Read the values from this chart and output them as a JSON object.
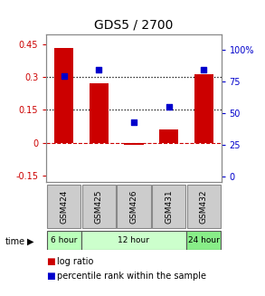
{
  "title": "GDS5 / 2700",
  "samples": [
    "GSM424",
    "GSM425",
    "GSM426",
    "GSM431",
    "GSM432"
  ],
  "log_ratio": [
    0.43,
    0.27,
    -0.01,
    0.06,
    0.31
  ],
  "percentile_rank": [
    79,
    84,
    43,
    55,
    84
  ],
  "time_groups": [
    {
      "label": "6 hour",
      "start": 0,
      "end": 1,
      "color": "#bbffbb"
    },
    {
      "label": "12 hour",
      "start": 1,
      "end": 4,
      "color": "#ccffcc"
    },
    {
      "label": "24 hour",
      "start": 4,
      "end": 5,
      "color": "#88ee88"
    }
  ],
  "bar_color": "#cc0000",
  "dot_color": "#0000cc",
  "ylim_left": [
    -0.18,
    0.495
  ],
  "ylim_right": [
    -4.5,
    112.5
  ],
  "yticks_left": [
    -0.15,
    0,
    0.15,
    0.3,
    0.45
  ],
  "yticks_right": [
    0,
    25,
    50,
    75,
    100
  ],
  "ytick_labels_left": [
    "-0.15",
    "0",
    "0.15",
    "0.3",
    "0.45"
  ],
  "ytick_labels_right": [
    "0",
    "25",
    "50",
    "75",
    "100%"
  ],
  "hlines_y": [
    0.15,
    0.3
  ],
  "hline_zero_color": "#cc0000",
  "hline_dotted_color": "#000000",
  "background_color": "#ffffff",
  "gsm_box_color": "#cccccc",
  "legend_log_ratio": "log ratio",
  "legend_percentile": "percentile rank within the sample",
  "bar_width": 0.55
}
